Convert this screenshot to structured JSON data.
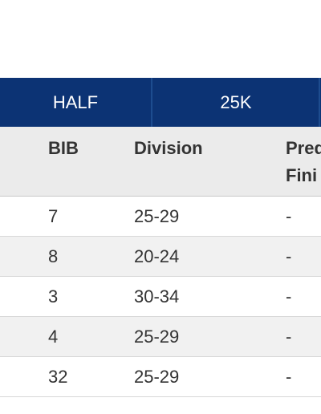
{
  "tabs": [
    {
      "label": "HALF"
    },
    {
      "label": "25K"
    }
  ],
  "table": {
    "headers": {
      "bib": "BIB",
      "division": "Division",
      "predicted_line1": "Pred",
      "predicted_line2": "Fini"
    },
    "rows": [
      {
        "bib": "7",
        "division": "25-29",
        "predicted": "-"
      },
      {
        "bib": "8",
        "division": "20-24",
        "predicted": "-"
      },
      {
        "bib": "3",
        "division": "30-34",
        "predicted": "-"
      },
      {
        "bib": "4",
        "division": "25-29",
        "predicted": "-"
      },
      {
        "bib": "32",
        "division": "25-29",
        "predicted": "-"
      }
    ]
  },
  "colors": {
    "tab_bar": "#0c3374",
    "header_bg": "#ebebeb",
    "alt_row_bg": "#f1f1f1"
  }
}
